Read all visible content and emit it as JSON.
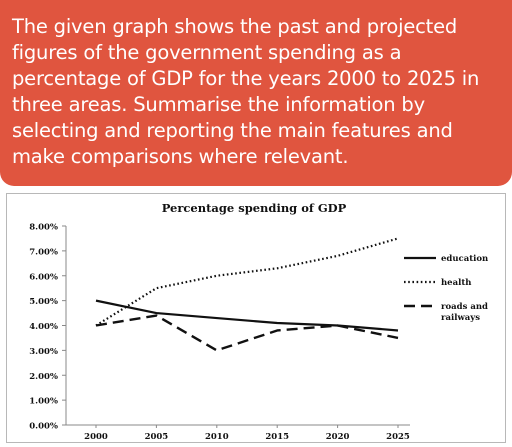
{
  "prompt": {
    "text": "The given graph shows the past and projected figures of the government spending as a percentage of GDP for the years 2000 to 2025 in three areas. Summarise the information by selecting and reporting the main features and make comparisons where relevant."
  },
  "chart_data": {
    "type": "line",
    "title": "Percentage spending of GDP",
    "xlabel": "",
    "ylabel": "",
    "x": [
      "2000",
      "2005",
      "2010",
      "2015",
      "2020",
      "2025"
    ],
    "ylim": [
      0,
      8
    ],
    "yticks": [
      "0.00%",
      "1.00%",
      "2.00%",
      "3.00%",
      "4.00%",
      "5.00%",
      "6.00%",
      "7.00%",
      "8.00%"
    ],
    "grid": false,
    "legend": "right",
    "series": [
      {
        "name": "education",
        "style": "solid",
        "values": [
          5.0,
          4.5,
          4.3,
          4.1,
          4.0,
          3.8
        ]
      },
      {
        "name": "health",
        "style": "dotted",
        "values": [
          4.0,
          5.5,
          6.0,
          6.3,
          6.8,
          7.5
        ]
      },
      {
        "name": "roads and railways",
        "style": "dashed",
        "values": [
          4.0,
          4.4,
          3.0,
          3.8,
          4.0,
          3.5
        ]
      }
    ]
  }
}
